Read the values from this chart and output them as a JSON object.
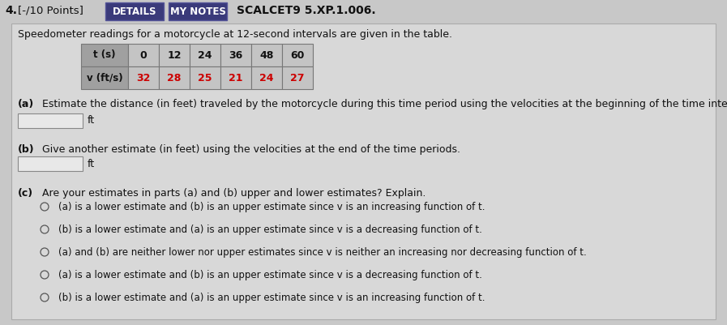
{
  "header_num": "4.",
  "header_points": "[-/10 Points]",
  "btn_details": "DETAILS",
  "btn_notes": "MY NOTES",
  "header_code": "SCALCET9 5.XP.1.006.",
  "problem_text": "Speedometer readings for a motorcycle at 12-second intervals are given in the table.",
  "table_t_label": "t (s)",
  "table_v_label": "v (ft/s)",
  "table_t_values": [
    "0",
    "12",
    "24",
    "36",
    "48",
    "60"
  ],
  "table_v_values": [
    "32",
    "28",
    "25",
    "21",
    "24",
    "27"
  ],
  "table_v_color": "#cc0000",
  "part_a_label": "(a)",
  "part_a_text": "Estimate the distance (in feet) traveled by the motorcycle during this time period using the velocities at the beginning of the time intervals.",
  "part_a_unit": "ft",
  "part_b_label": "(b)",
  "part_b_text": "Give another estimate (in feet) using the velocities at the end of the time periods.",
  "part_b_unit": "ft",
  "part_c_label": "(c)",
  "part_c_text": "Are your estimates in parts (a) and (b) upper and lower estimates? Explain.",
  "radio_options": [
    "(a) is a lower estimate and (b) is an upper estimate since v is an increasing function of t.",
    "(b) is a lower estimate and (a) is an upper estimate since v is a decreasing function of t.",
    "(a) and (b) are neither lower nor upper estimates since v is neither an increasing nor decreasing function of t.",
    "(a) is a lower estimate and (b) is an upper estimate since v is a decreasing function of t.",
    "(b) is a lower estimate and (a) is an upper estimate since v is an increasing function of t."
  ],
  "bg_color": "#c8c8c8",
  "content_bg": "#d8d8d8",
  "btn_details_bg": "#3a3a7a",
  "btn_notes_bg": "#3a3a7a",
  "table_header_bg": "#a0a0a0",
  "table_cell_bg": "#c4c4c4",
  "input_box_color": "#e8e8e8",
  "font_color": "#111111",
  "font_size_body": 9.0,
  "font_size_small": 8.5
}
